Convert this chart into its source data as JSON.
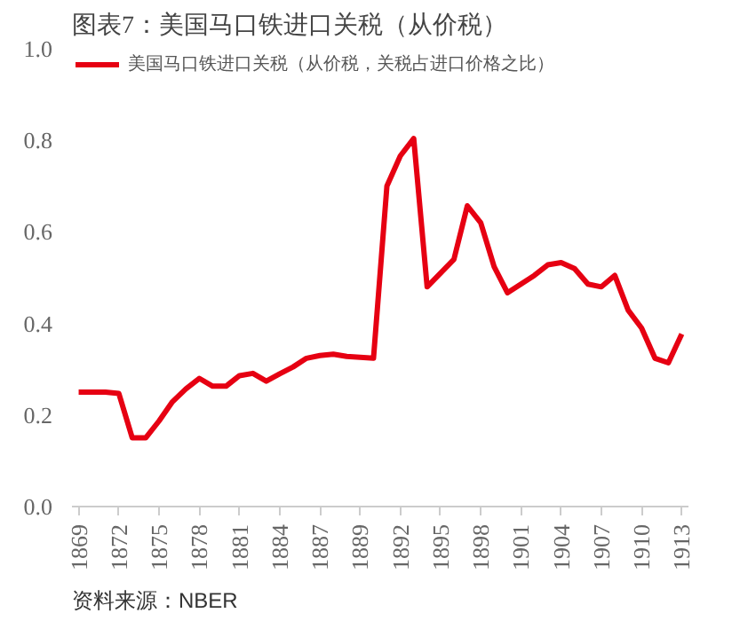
{
  "chart_data": {
    "type": "line",
    "title": "图表7：美国马口铁进口关税（从价税）",
    "categories": [
      "1869",
      null,
      null,
      "1872",
      null,
      null,
      "1875",
      null,
      null,
      "1878",
      null,
      null,
      "1881",
      null,
      null,
      "1884",
      null,
      null,
      "1887",
      null,
      null,
      "1889",
      null,
      null,
      "1892",
      null,
      null,
      "1895",
      null,
      null,
      "1898",
      null,
      null,
      "1901",
      null,
      null,
      "1904",
      null,
      null,
      "1907",
      null,
      null,
      "1910",
      null,
      null,
      "1913"
    ],
    "series": [
      {
        "name": "美国马口铁进口关税（从价税，关税占进口价格之比）",
        "color": "#e60012",
        "values": [
          0.25,
          0.25,
          0.25,
          0.247,
          0.15,
          0.15,
          0.187,
          0.229,
          0.257,
          0.28,
          0.263,
          0.263,
          0.286,
          0.291,
          0.274,
          0.29,
          0.305,
          0.324,
          0.33,
          0.333,
          0.328,
          0.326,
          0.324,
          0.7,
          0.766,
          0.804,
          0.48,
          0.51,
          0.54,
          0.657,
          0.62,
          0.524,
          0.467,
          0.486,
          0.505,
          0.528,
          0.533,
          0.52,
          0.486,
          0.48,
          0.505,
          0.429,
          0.39,
          0.324,
          0.314,
          0.377
        ]
      }
    ],
    "ylim": [
      0,
      1.0
    ],
    "yticks": [
      {
        "value": 0,
        "label": "0.0"
      },
      {
        "value": 0.2,
        "label": "0.2"
      },
      {
        "value": 0.4,
        "label": "0.4"
      },
      {
        "value": 0.6,
        "label": "0.6"
      },
      {
        "value": 0.8,
        "label": "0.8"
      },
      {
        "value": 1.0,
        "label": "1.0"
      }
    ],
    "grid": false,
    "legend": "top",
    "marker": "none",
    "line_style": "solid",
    "annotations": [
      "资料来源：NBER"
    ]
  }
}
